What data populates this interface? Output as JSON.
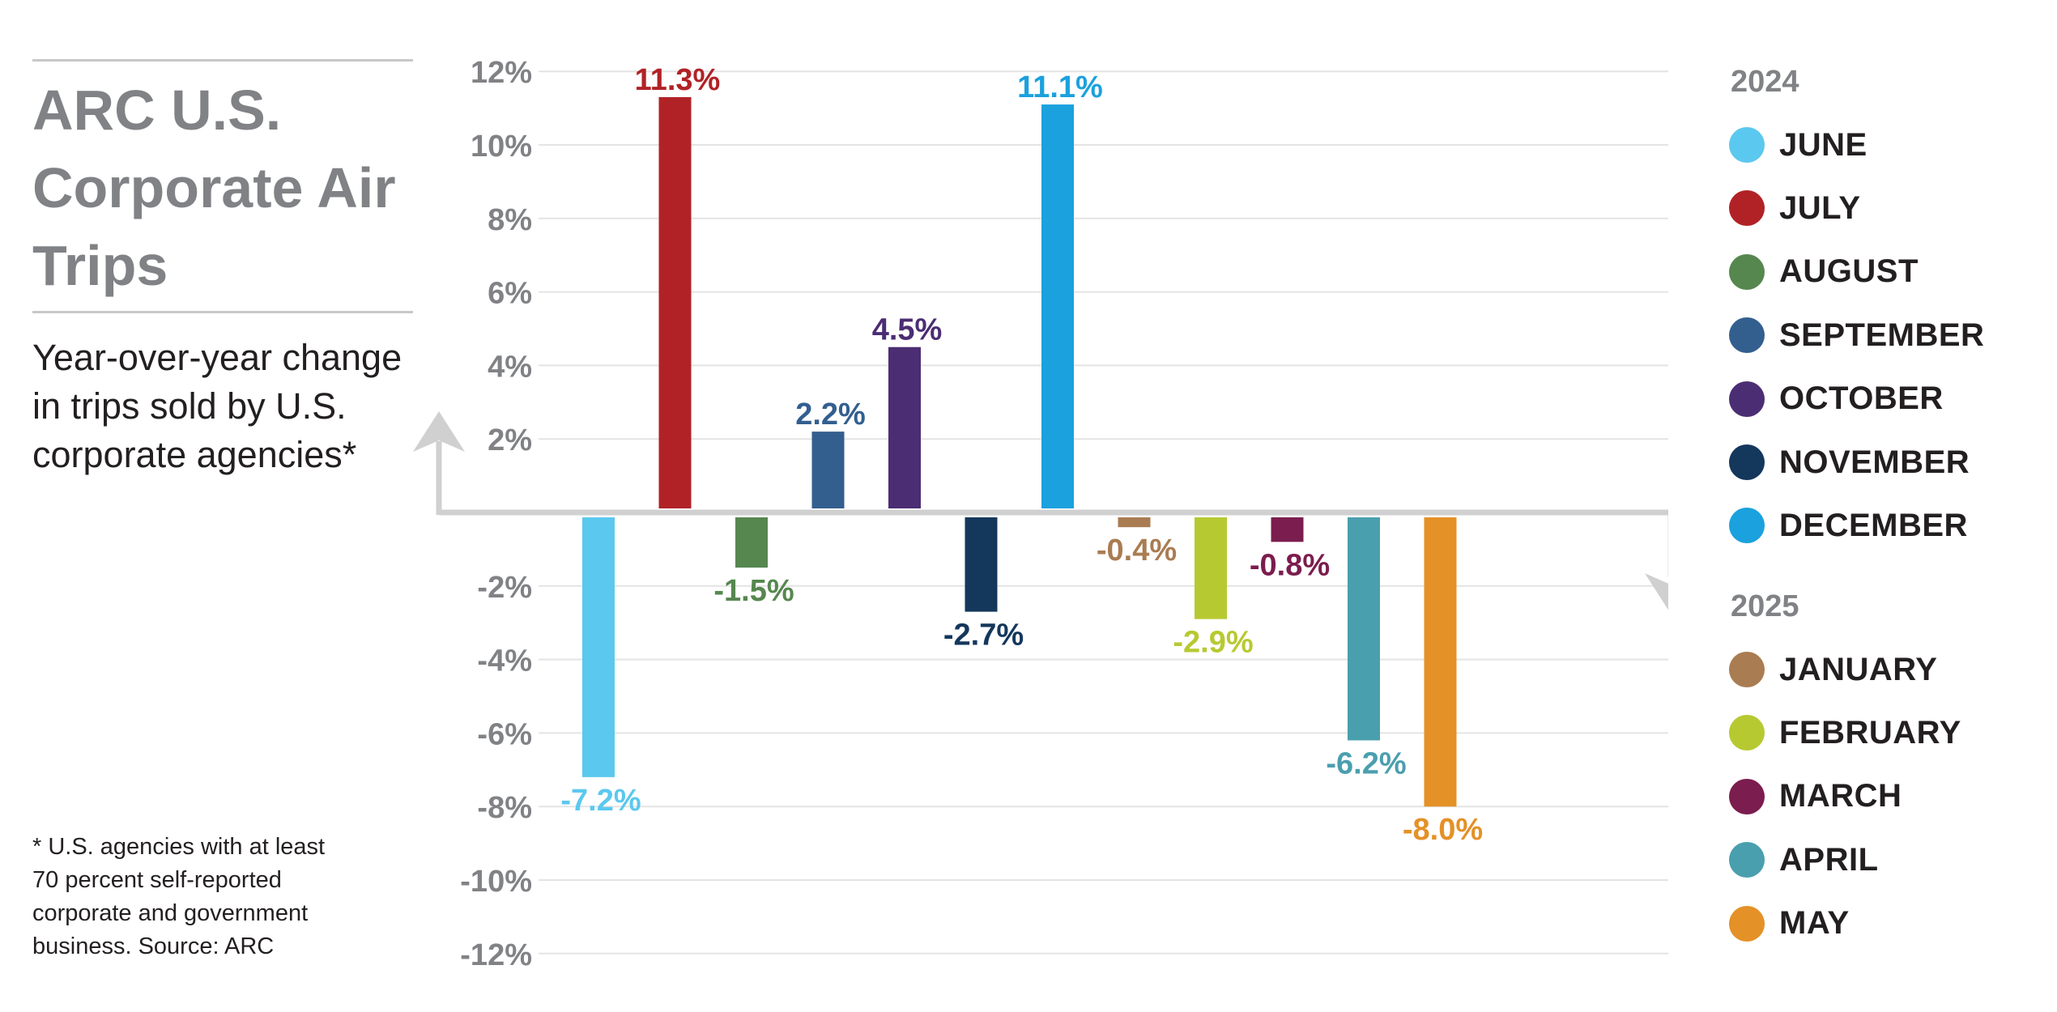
{
  "header": {
    "title": "ARC U.S. Corporate Air Trips",
    "subtitle": "Year-over-year change in trips sold by U.S. corporate agencies*"
  },
  "footnote": "* U.S. agencies with at least 70 percent self-reported corporate and government business. Source: ARC",
  "legend": {
    "groups": [
      {
        "year": "2024",
        "items": [
          {
            "label": "JUNE",
            "color": "#5bc8ef"
          },
          {
            "label": "JULY",
            "color": "#b12226"
          },
          {
            "label": "AUGUST",
            "color": "#56874f"
          },
          {
            "label": "SEPTEMBER",
            "color": "#335f8f"
          },
          {
            "label": "OCTOBER",
            "color": "#4b2d73"
          },
          {
            "label": "NOVEMBER",
            "color": "#14375c"
          },
          {
            "label": "DECEMBER",
            "color": "#1ba1dd"
          }
        ]
      },
      {
        "year": "2025",
        "items": [
          {
            "label": "JANUARY",
            "color": "#a97c52"
          },
          {
            "label": "FEBRUARY",
            "color": "#b7c931"
          },
          {
            "label": "MARCH",
            "color": "#7b1d4e"
          },
          {
            "label": "APRIL",
            "color": "#4a9fae"
          },
          {
            "label": "MAY",
            "color": "#e49127"
          }
        ]
      }
    ]
  },
  "chart_data": {
    "type": "bar",
    "title": "ARC U.S. Corporate Air Trips",
    "subtitle": "Year-over-year change in trips sold by U.S. corporate agencies*",
    "categories": [
      "JUNE",
      "JULY",
      "AUGUST",
      "SEPTEMBER",
      "OCTOBER",
      "NOVEMBER",
      "DECEMBER",
      "JANUARY",
      "FEBRUARY",
      "MARCH",
      "APRIL",
      "MAY"
    ],
    "values": [
      -7.2,
      11.3,
      -1.5,
      2.2,
      4.5,
      -2.7,
      11.1,
      -0.4,
      -2.9,
      -0.8,
      -6.2,
      -8.0
    ],
    "data_labels": [
      "-7.2%",
      "11.3%",
      "-1.5%",
      "2.2%",
      "4.5%",
      "-2.7%",
      "11.1%",
      "-0.4%",
      "-2.9%",
      "-0.8%",
      "-6.2%",
      "-8.0%"
    ],
    "colors": [
      "#5bc8ef",
      "#b12226",
      "#56874f",
      "#335f8f",
      "#4b2d73",
      "#14375c",
      "#1ba1dd",
      "#a97c52",
      "#b7c931",
      "#7b1d4e",
      "#4a9fae",
      "#e49127"
    ],
    "ylim": [
      -12,
      12
    ],
    "yticks": [
      12,
      10,
      8,
      6,
      4,
      2,
      -2,
      -4,
      -6,
      -8,
      -10,
      -12
    ],
    "ytick_labels": [
      "12%",
      "10%",
      "8%",
      "6%",
      "4%",
      "2%",
      "-2%",
      "-4%",
      "-6%",
      "-8%",
      "-10%",
      "-12%"
    ],
    "grid": true,
    "legend_position": "right"
  }
}
